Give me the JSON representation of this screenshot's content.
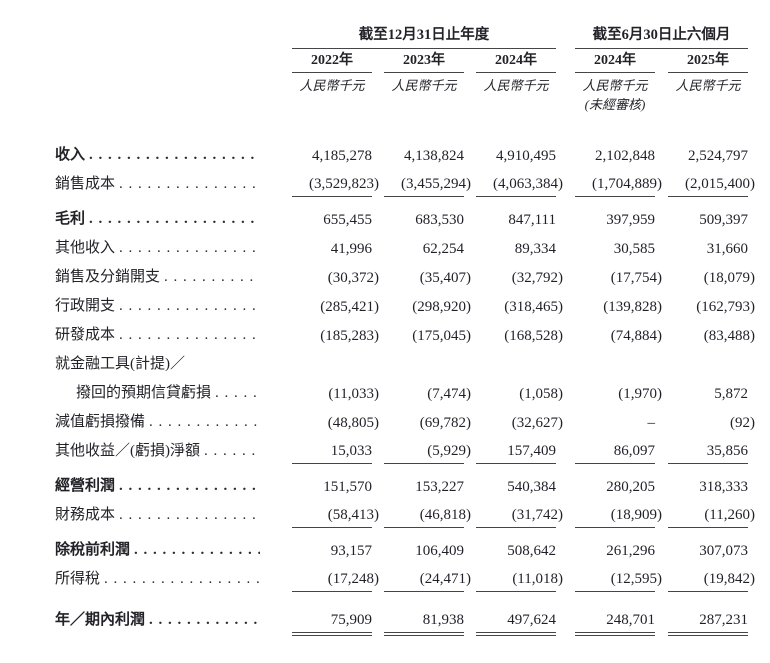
{
  "document": {
    "type": "income-statement-table",
    "currency_unit_label": "人民幣千元",
    "unaudited_note": "(未經審核)"
  },
  "table": {
    "col_groups": [
      {
        "title": "截至12月31日止年度",
        "years": [
          "2022年",
          "2023年",
          "2024年"
        ]
      },
      {
        "title": "截至6月30日止六個月",
        "years": [
          "2024年",
          "2025年"
        ]
      }
    ],
    "columns": [
      {
        "year": "2022年",
        "unit": "人民幣千元",
        "unaudited": false
      },
      {
        "year": "2023年",
        "unit": "人民幣千元",
        "unaudited": false
      },
      {
        "year": "2024年",
        "unit": "人民幣千元",
        "unaudited": false
      },
      {
        "year": "2024年",
        "unit": "人民幣千元",
        "unaudited": true
      },
      {
        "year": "2025年",
        "unit": "人民幣千元",
        "unaudited": false
      }
    ],
    "rows": [
      {
        "label": "收入",
        "bold": true,
        "dots": true,
        "rule": null,
        "space_after": false,
        "values": [
          "4,185,278",
          "4,138,824",
          "4,910,495",
          "2,102,848",
          "2,524,797"
        ]
      },
      {
        "label": "銷售成本",
        "bold": false,
        "dots": true,
        "rule": "single",
        "space_after": true,
        "values": [
          "(3,529,823)",
          "(3,455,294)",
          "(4,063,384)",
          "(1,704,889)",
          "(2,015,400)"
        ]
      },
      {
        "label": "毛利",
        "bold": true,
        "dots": true,
        "rule": null,
        "space_after": false,
        "values": [
          "655,455",
          "683,530",
          "847,111",
          "397,959",
          "509,397"
        ]
      },
      {
        "label": "其他收入",
        "bold": false,
        "dots": true,
        "rule": null,
        "space_after": false,
        "values": [
          "41,996",
          "62,254",
          "89,334",
          "30,585",
          "31,660"
        ]
      },
      {
        "label": "銷售及分銷開支",
        "bold": false,
        "dots": true,
        "rule": null,
        "space_after": false,
        "values": [
          "(30,372)",
          "(35,407)",
          "(32,792)",
          "(17,754)",
          "(18,079)"
        ]
      },
      {
        "label": "行政開支",
        "bold": false,
        "dots": true,
        "rule": null,
        "space_after": false,
        "values": [
          "(285,421)",
          "(298,920)",
          "(318,465)",
          "(139,828)",
          "(162,793)"
        ]
      },
      {
        "label": "研發成本",
        "bold": false,
        "dots": true,
        "rule": null,
        "space_after": false,
        "values": [
          "(185,283)",
          "(175,045)",
          "(168,528)",
          "(74,884)",
          "(83,488)"
        ]
      },
      {
        "label": "就金融工具(計提)／",
        "bold": false,
        "dots": false,
        "rule": null,
        "space_after": false,
        "values": [
          "",
          "",
          "",
          "",
          ""
        ]
      },
      {
        "label": "撥回的預期信貸虧損",
        "bold": false,
        "indent": true,
        "dots": true,
        "rule": null,
        "space_after": false,
        "values": [
          "(11,033)",
          "(7,474)",
          "(1,058)",
          "(1,970)",
          "5,872"
        ]
      },
      {
        "label": "減值虧損撥備",
        "bold": false,
        "dots": true,
        "rule": null,
        "space_after": false,
        "values": [
          "(48,805)",
          "(69,782)",
          "(32,627)",
          "–",
          "(92)"
        ]
      },
      {
        "label": "其他收益／(虧損)淨額",
        "bold": false,
        "dots": true,
        "rule": "single",
        "space_after": true,
        "values": [
          "15,033",
          "(5,929)",
          "157,409",
          "86,097",
          "35,856"
        ]
      },
      {
        "label": "經營利潤",
        "bold": true,
        "dots": true,
        "rule": null,
        "space_after": false,
        "values": [
          "151,570",
          "153,227",
          "540,384",
          "280,205",
          "318,333"
        ]
      },
      {
        "label": "財務成本",
        "bold": false,
        "dots": true,
        "rule": "single",
        "space_after": true,
        "values": [
          "(58,413)",
          "(46,818)",
          "(31,742)",
          "(18,909)",
          "(11,260)"
        ]
      },
      {
        "label": "除稅前利潤",
        "bold": true,
        "dots": true,
        "rule": null,
        "space_after": false,
        "values": [
          "93,157",
          "106,409",
          "508,642",
          "261,296",
          "307,073"
        ]
      },
      {
        "label": "所得稅",
        "bold": false,
        "dots": true,
        "rule": "single",
        "space_after": true,
        "values": [
          "(17,248)",
          "(24,471)",
          "(11,018)",
          "(12,595)",
          "(19,842)"
        ]
      },
      {
        "label": "年／期內利潤",
        "bold": true,
        "dots": true,
        "rule": "double",
        "space_after": false,
        "last": true,
        "values": [
          "75,909",
          "81,938",
          "497,624",
          "248,701",
          "287,231"
        ]
      }
    ]
  }
}
